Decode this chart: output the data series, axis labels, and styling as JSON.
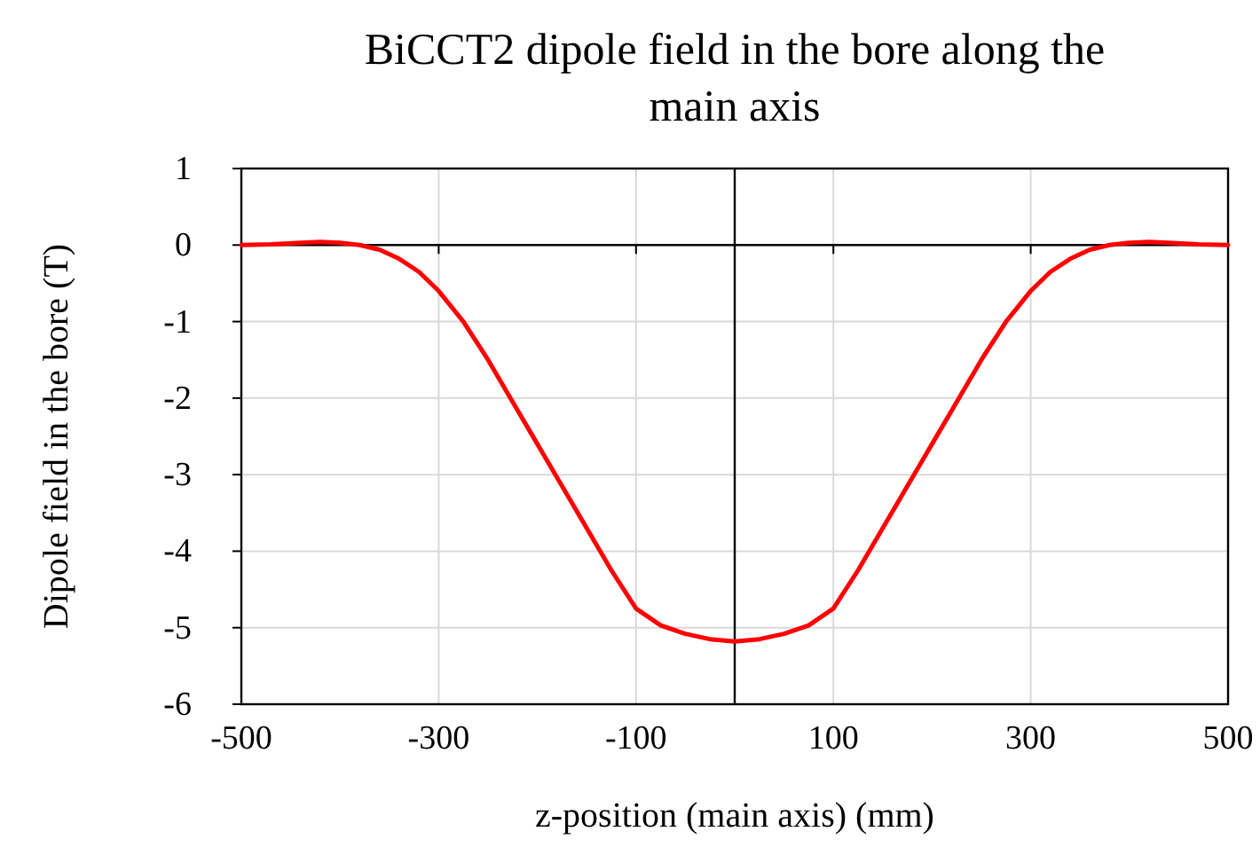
{
  "chart_data": {
    "type": "line",
    "title": "BiCCT2 dipole field in the bore along the main axis",
    "xlabel": "z-position (main axis) (mm)",
    "ylabel": "Dipole field in the bore (T)",
    "x": [
      -500,
      -470,
      -440,
      -420,
      -400,
      -380,
      -360,
      -340,
      -320,
      -300,
      -275,
      -250,
      -225,
      -200,
      -175,
      -150,
      -125,
      -100,
      -75,
      -50,
      -25,
      0,
      25,
      50,
      75,
      100,
      125,
      150,
      175,
      200,
      225,
      250,
      275,
      300,
      320,
      340,
      360,
      380,
      400,
      420,
      440,
      470,
      500
    ],
    "series": [
      {
        "color": "#ff0000",
        "values": [
          0,
          0.01,
          0.03,
          0.04,
          0.03,
          0,
          -0.06,
          -0.18,
          -0.35,
          -0.6,
          -1.0,
          -1.5,
          -2.05,
          -2.6,
          -3.15,
          -3.7,
          -4.25,
          -4.75,
          -4.97,
          -5.08,
          -5.15,
          -5.18,
          -5.15,
          -5.08,
          -4.97,
          -4.75,
          -4.25,
          -3.7,
          -3.15,
          -2.6,
          -2.05,
          -1.5,
          -1.0,
          -0.6,
          -0.35,
          -0.18,
          -0.06,
          0,
          0.03,
          0.04,
          0.03,
          0.01,
          0
        ]
      }
    ],
    "xlim": [
      -500,
      500
    ],
    "xticks": [
      -500,
      -300,
      -100,
      100,
      300,
      500
    ],
    "ylim": [
      -6,
      1
    ],
    "yticks": [
      1,
      0,
      -1,
      -2,
      -3,
      -4,
      -5,
      -6
    ],
    "grid": true,
    "line_style": "solid",
    "marker": "none"
  }
}
